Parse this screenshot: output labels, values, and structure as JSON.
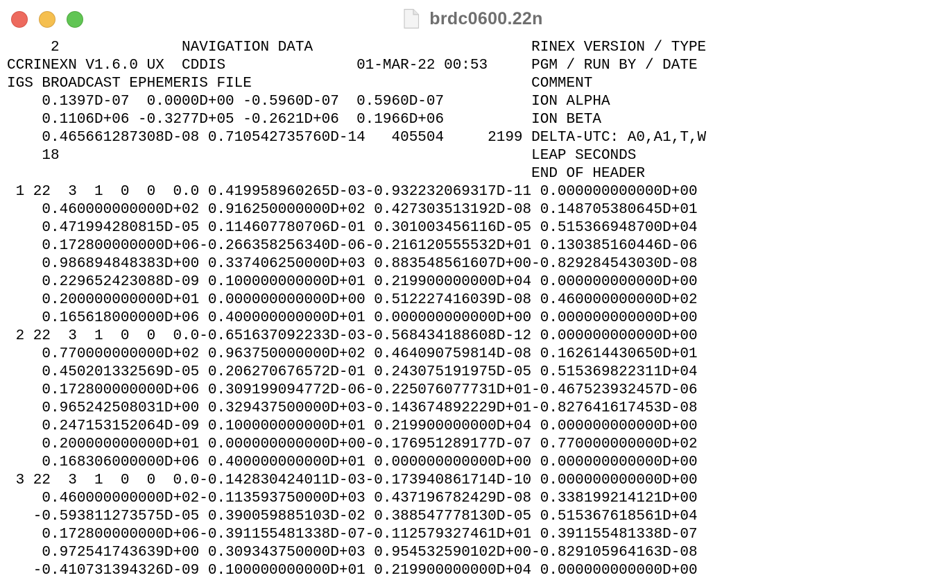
{
  "window": {
    "title": "brdc0600.22n",
    "icons": {
      "close": "close-button",
      "minimize": "minimize-button",
      "zoom": "zoom-button",
      "document": "document-icon"
    },
    "colors": {
      "close": "#ed6a5e",
      "minimize": "#f5bf4f",
      "zoom": "#61c554",
      "title_text": "#6f6f6f"
    }
  },
  "file": {
    "lines": [
      "     2              NAVIGATION DATA                         RINEX VERSION / TYPE",
      "CCRINEXN V1.6.0 UX  CDDIS               01-MAR-22 00:53     PGM / RUN BY / DATE",
      "IGS BROADCAST EPHEMERIS FILE                                COMMENT",
      "    0.1397D-07  0.0000D+00 -0.5960D-07  0.5960D-07          ION ALPHA",
      "    0.1106D+06 -0.3277D+05 -0.2621D+06  0.1966D+06          ION BETA",
      "    0.465661287308D-08 0.710542735760D-14   405504     2199 DELTA-UTC: A0,A1,T,W",
      "    18                                                      LEAP SECONDS",
      "                                                            END OF HEADER",
      " 1 22  3  1  0  0  0.0 0.419958960265D-03-0.932232069317D-11 0.000000000000D+00",
      "    0.460000000000D+02 0.916250000000D+02 0.427303513192D-08 0.148705380645D+01",
      "    0.471994280815D-05 0.114607780706D-01 0.301003456116D-05 0.515366948700D+04",
      "    0.172800000000D+06-0.266358256340D-06-0.216120555532D+01 0.130385160446D-06",
      "    0.986894848383D+00 0.337406250000D+03 0.883548561607D+00-0.829284543030D-08",
      "    0.229652423088D-09 0.100000000000D+01 0.219900000000D+04 0.000000000000D+00",
      "    0.200000000000D+01 0.000000000000D+00 0.512227416039D-08 0.460000000000D+02",
      "    0.165618000000D+06 0.400000000000D+01 0.000000000000D+00 0.000000000000D+00",
      " 2 22  3  1  0  0  0.0-0.651637092233D-03-0.568434188608D-12 0.000000000000D+00",
      "    0.770000000000D+02 0.963750000000D+02 0.464090759814D-08 0.162614430650D+01",
      "    0.450201332569D-05 0.206270676572D-01 0.243075191975D-05 0.515369822311D+04",
      "    0.172800000000D+06 0.309199094772D-06-0.225076077731D+01-0.467523932457D-06",
      "    0.965242508031D+00 0.329437500000D+03-0.143674892229D+01-0.827641617453D-08",
      "    0.247153152064D-09 0.100000000000D+01 0.219900000000D+04 0.000000000000D+00",
      "    0.200000000000D+01 0.000000000000D+00-0.176951289177D-07 0.770000000000D+02",
      "    0.168306000000D+06 0.400000000000D+01 0.000000000000D+00 0.000000000000D+00",
      " 3 22  3  1  0  0  0.0-0.142830424011D-03-0.173940861714D-10 0.000000000000D+00",
      "    0.460000000000D+02-0.113593750000D+03 0.437196782429D-08 0.338199214121D+00",
      "   -0.593811273575D-05 0.390059885103D-02 0.388547778130D-05 0.515367618561D+04",
      "    0.172800000000D+06-0.391155481338D-07-0.112579327461D+01 0.391155481338D-07",
      "    0.972541743639D+00 0.309343750000D+03 0.954532590102D+00-0.829105964163D-08",
      "   -0.410731394326D-09 0.100000000000D+01 0.219900000000D+04 0.000000000000D+00"
    ]
  }
}
